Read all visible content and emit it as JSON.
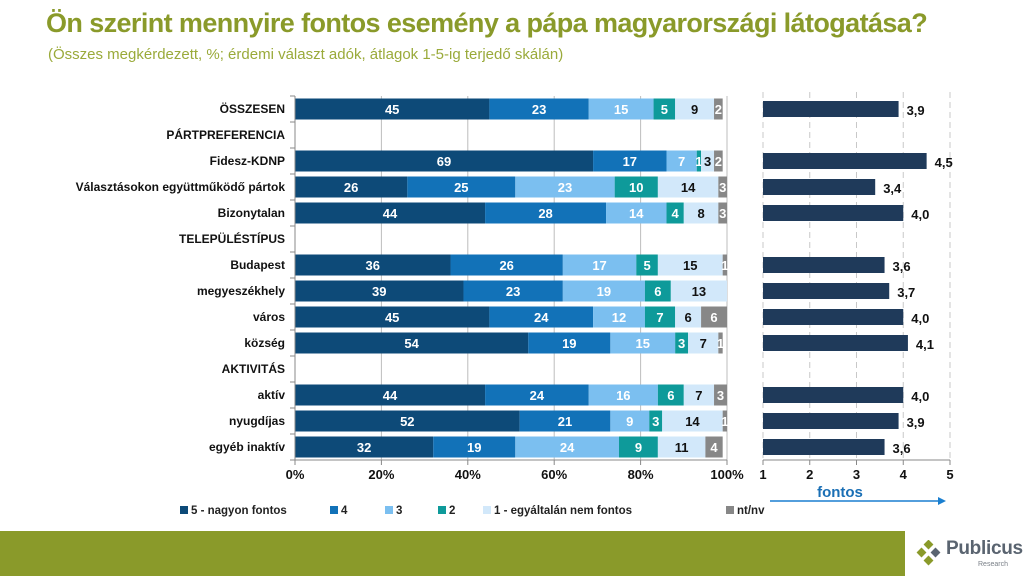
{
  "title": "Ön szerint mennyire fontos esemény a pápa magyarországi látogatása?",
  "subtitle": "(Összes megkérdezett, %; érdemi választ adók, átlagok 1-5-ig terjedő skálán)",
  "logo": {
    "name": "Publicus",
    "sub": "Research"
  },
  "chart_data": [
    {
      "type": "bar",
      "orientation": "horizontal",
      "stacked": true,
      "title": "",
      "xlabel": "",
      "ylabel": "",
      "xlim": [
        0,
        100
      ],
      "x_ticks": [
        "0%",
        "20%",
        "40%",
        "60%",
        "80%",
        "100%"
      ],
      "grid": true,
      "legend_position": "bottom",
      "categories": [
        "ÖSSZESEN",
        "PÁRTPREFERENCIA",
        "Fidesz-KDNP",
        "Választásokon együttműködő pártok",
        "Bizonytalan",
        "TELEPÜLÉSTÍPUS",
        "Budapest",
        "megyeszékhely",
        "város",
        "község",
        "AKTIVITÁS",
        "aktív",
        "nyugdíjas",
        "egyéb inaktív"
      ],
      "section_headers": [
        "PÁRTPREFERENCIA",
        "TELEPÜLÉSTÍPUS",
        "AKTIVITÁS"
      ],
      "series": [
        {
          "name": "5 - nagyon fontos",
          "color": "#0d4a78",
          "values": [
            45,
            null,
            69,
            26,
            44,
            null,
            36,
            39,
            45,
            54,
            null,
            44,
            52,
            32
          ]
        },
        {
          "name": "4",
          "color": "#1272b8",
          "values": [
            23,
            null,
            17,
            25,
            28,
            null,
            26,
            23,
            24,
            19,
            null,
            24,
            21,
            19
          ]
        },
        {
          "name": "3",
          "color": "#7bbff0",
          "values": [
            15,
            null,
            7,
            23,
            14,
            null,
            17,
            19,
            12,
            15,
            null,
            16,
            9,
            24
          ]
        },
        {
          "name": "2",
          "color": "#0e9a9a",
          "values": [
            5,
            null,
            1,
            10,
            4,
            null,
            5,
            6,
            7,
            3,
            null,
            6,
            3,
            9
          ]
        },
        {
          "name": "1 - egyáltalán nem fontos",
          "color": "#d2e8fa",
          "values": [
            9,
            null,
            3,
            14,
            8,
            null,
            15,
            13,
            6,
            7,
            null,
            7,
            14,
            11
          ]
        },
        {
          "name": "nt/nv",
          "color": "#878787",
          "values": [
            2,
            null,
            2,
            3,
            3,
            null,
            1,
            0,
            6,
            1,
            null,
            3,
            1,
            4
          ]
        }
      ]
    },
    {
      "type": "bar",
      "orientation": "horizontal",
      "title": "",
      "xlabel": "fontos",
      "xlim": [
        1,
        5
      ],
      "x_ticks": [
        "1",
        "2",
        "3",
        "4",
        "5"
      ],
      "grid": true,
      "color": "#1f3a5a",
      "categories": [
        "ÖSSZESEN",
        "PÁRTPREFERENCIA",
        "Fidesz-KDNP",
        "Választásokon együttműködő pártok",
        "Bizonytalan",
        "TELEPÜLÉSTÍPUS",
        "Budapest",
        "megyeszékhely",
        "város",
        "község",
        "AKTIVITÁS",
        "aktív",
        "nyugdíjas",
        "egyéb inaktív"
      ],
      "values": [
        3.9,
        null,
        4.5,
        3.4,
        4.0,
        null,
        3.6,
        3.7,
        4.0,
        4.1,
        null,
        4.0,
        3.9,
        3.6
      ],
      "labels": [
        "3,9",
        null,
        "4,5",
        "3,4",
        "4,0",
        null,
        "3,6",
        "3,7",
        "4,0",
        "4,1",
        null,
        "4,0",
        "3,9",
        "3,6"
      ]
    }
  ]
}
